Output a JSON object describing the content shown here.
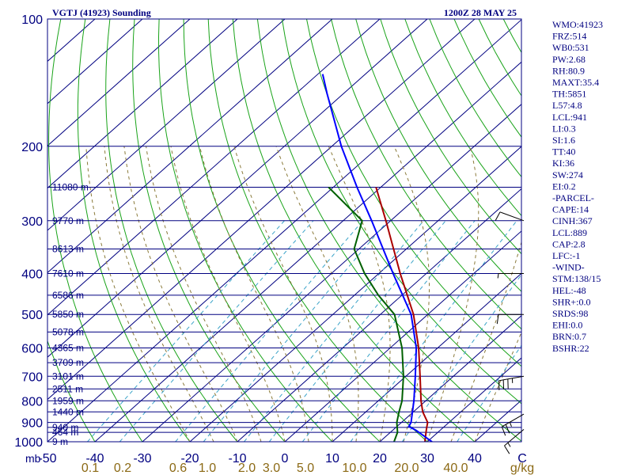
{
  "header": {
    "station": "VGTJ (41923) Sounding",
    "time": "1200Z 28 MAY 25"
  },
  "colors": {
    "navy": "#000080",
    "adiabat": "#19a319",
    "moist": "#1e8f1e",
    "mixing": "#3aa3c8",
    "satmix": "#8a7a3a",
    "temp": "#aa0000",
    "dew": "#006000",
    "virtual": "#0000b0",
    "parcel": "#0000ff",
    "wind": "#000000",
    "tan": "#8b6914"
  },
  "chart_data": {
    "type": "line",
    "title": "VGTJ (41923) Sounding",
    "subtitle": "1200Z 28 MAY 25",
    "x_axis": {
      "label": "mb",
      "ticks": [
        "-50",
        "-40",
        "-30",
        "-20",
        "-10",
        "0",
        "10",
        "20",
        "30",
        "40",
        "C"
      ],
      "xlim": [
        -50,
        50
      ]
    },
    "y_axis": {
      "scale": "log",
      "ticks": [
        "100",
        "200",
        "300",
        "400",
        "500",
        "600",
        "700",
        "800",
        "900",
        "1000"
      ],
      "ylim": [
        1000,
        100
      ]
    },
    "mixing_ratio_labels": [
      "0.1",
      "0.2",
      "0.6",
      "1.0",
      "2.0",
      "3.0",
      "5.0",
      "10.0",
      "20.0",
      "40.0",
      "g/kg"
    ],
    "height_labels": [
      {
        "p": 1000,
        "label": "9 m"
      },
      {
        "p": 950,
        "label": "464 m"
      },
      {
        "p": 925,
        "label": "940 m"
      },
      {
        "p": 850,
        "label": "1440 m"
      },
      {
        "p": 800,
        "label": "1959 m"
      },
      {
        "p": 750,
        "label": "2511 m"
      },
      {
        "p": 700,
        "label": "3101 m"
      },
      {
        "p": 650,
        "label": "3709 m"
      },
      {
        "p": 600,
        "label": "4365 m"
      },
      {
        "p": 550,
        "label": "5078 m"
      },
      {
        "p": 500,
        "label": "5850 m"
      },
      {
        "p": 450,
        "label": "6586 m"
      },
      {
        "p": 400,
        "label": "7610 m"
      },
      {
        "p": 350,
        "label": "8613 m"
      },
      {
        "p": 300,
        "label": "9770 m"
      },
      {
        "p": 250,
        "label": "11080 m"
      }
    ],
    "series": [
      {
        "key": "temperature",
        "color": "#aa0000",
        "points": [
          [
            1000,
            29.5
          ],
          [
            950,
            27.5
          ],
          [
            925,
            26.5
          ],
          [
            900,
            25.5
          ],
          [
            850,
            22.0
          ],
          [
            800,
            19.0
          ],
          [
            700,
            13.0
          ],
          [
            600,
            6.0
          ],
          [
            500,
            -3.0
          ],
          [
            400,
            -15.5
          ],
          [
            300,
            -31.0
          ],
          [
            250,
            -41.0
          ]
        ]
      },
      {
        "key": "dewpoint",
        "color": "#006000",
        "points": [
          [
            1000,
            23.0
          ],
          [
            950,
            21.5
          ],
          [
            900,
            19.0
          ],
          [
            850,
            17.0
          ],
          [
            800,
            15.0
          ],
          [
            700,
            9.5
          ],
          [
            600,
            2.5
          ],
          [
            500,
            -7.0
          ],
          [
            450,
            -15.0
          ],
          [
            400,
            -23.0
          ],
          [
            350,
            -31.0
          ],
          [
            300,
            -36.0
          ],
          [
            250,
            -51.0
          ]
        ]
      },
      {
        "key": "parcel",
        "color": "#0000ff",
        "points": [
          [
            1000,
            31.0
          ],
          [
            940,
            25.0
          ],
          [
            920,
            22.5
          ],
          [
            900,
            22.0
          ],
          [
            800,
            17.5
          ],
          [
            700,
            12.0
          ],
          [
            600,
            5.5
          ],
          [
            500,
            -3.5
          ],
          [
            400,
            -17.0
          ],
          [
            300,
            -34.0
          ],
          [
            250,
            -45.0
          ],
          [
            200,
            -58.0
          ],
          [
            150,
            -73.5
          ],
          [
            135,
            -79.0
          ]
        ]
      }
    ],
    "wind_barbs": [
      {
        "p": 935,
        "dir": 230,
        "spd": 15
      },
      {
        "p": 860,
        "dir": 240,
        "spd": 25
      },
      {
        "p": 700,
        "dir": 260,
        "spd": 35
      },
      {
        "p": 500,
        "dir": 270,
        "spd": 10
      },
      {
        "p": 400,
        "dir": 270,
        "spd": 5
      },
      {
        "p": 300,
        "dir": 290,
        "spd": 10
      }
    ]
  },
  "indices": [
    "WMO:41923",
    "FRZ:514",
    "WB0:531",
    "PW:2.68",
    "RH:80.9",
    "MAXT:35.4",
    "TH:5851",
    "L57:4.8",
    "LCL:941",
    "LI:0.3",
    "SI:1.6",
    "TT:40",
    "KI:36",
    "SW:274",
    "EI:0.2",
    "-PARCEL-",
    "CAPE:14",
    "CINH:367",
    "LCL:889",
    "CAP:2.8",
    "LFC:-1",
    "-WIND-",
    "STM:138/15",
    "HEL:-48",
    "SHR+:0.0",
    "SRDS:98",
    "EHI:0.0",
    "BRN:0.7",
    "BSHR:22"
  ]
}
